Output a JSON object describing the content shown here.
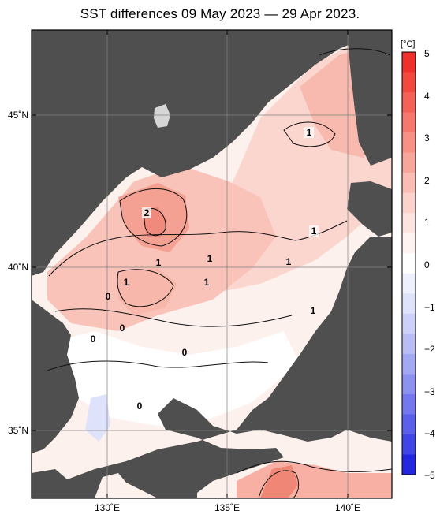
{
  "title": "SST differences 09 May 2023 — 29 Apr 2023.",
  "unit": "[°C]",
  "lat_labels": [
    {
      "lat": 45,
      "text": "45˚N"
    },
    {
      "lat": 40,
      "text": "40˚N"
    },
    {
      "lat": 35,
      "text": "35˚N"
    }
  ],
  "lon_labels": [
    {
      "lon": 130,
      "text": "130˚E"
    },
    {
      "lon": 135,
      "text": "135˚E"
    },
    {
      "lon": 140,
      "text": "140˚E"
    }
  ],
  "colorbar": {
    "labels": [
      "5",
      "4",
      "3",
      "2",
      "1",
      "0",
      "−1",
      "−2",
      "−3",
      "−4",
      "−5"
    ],
    "colors": [
      "#f0302a",
      "#f2483e",
      "#f46156",
      "#f6786c",
      "#f89083",
      "#f9a69a",
      "#fbbdb3",
      "#fcd2cb",
      "#fde4df",
      "#fef3f1",
      "#ffffff",
      "#eef0fd",
      "#dfe2fb",
      "#cdd1f9",
      "#b9bdf6",
      "#a3a8f3",
      "#8c92f0",
      "#7379ed",
      "#5a60ea",
      "#3f45e6",
      "#2228e0"
    ]
  },
  "contour_labels": [
    "1",
    "2",
    "1",
    "1",
    "1",
    "1",
    "1",
    "1",
    "0",
    "0",
    "0",
    "0",
    "0"
  ],
  "colors": {
    "land": "#4f4f4f",
    "grid": "#808080",
    "missing": "#c8c8c8"
  }
}
